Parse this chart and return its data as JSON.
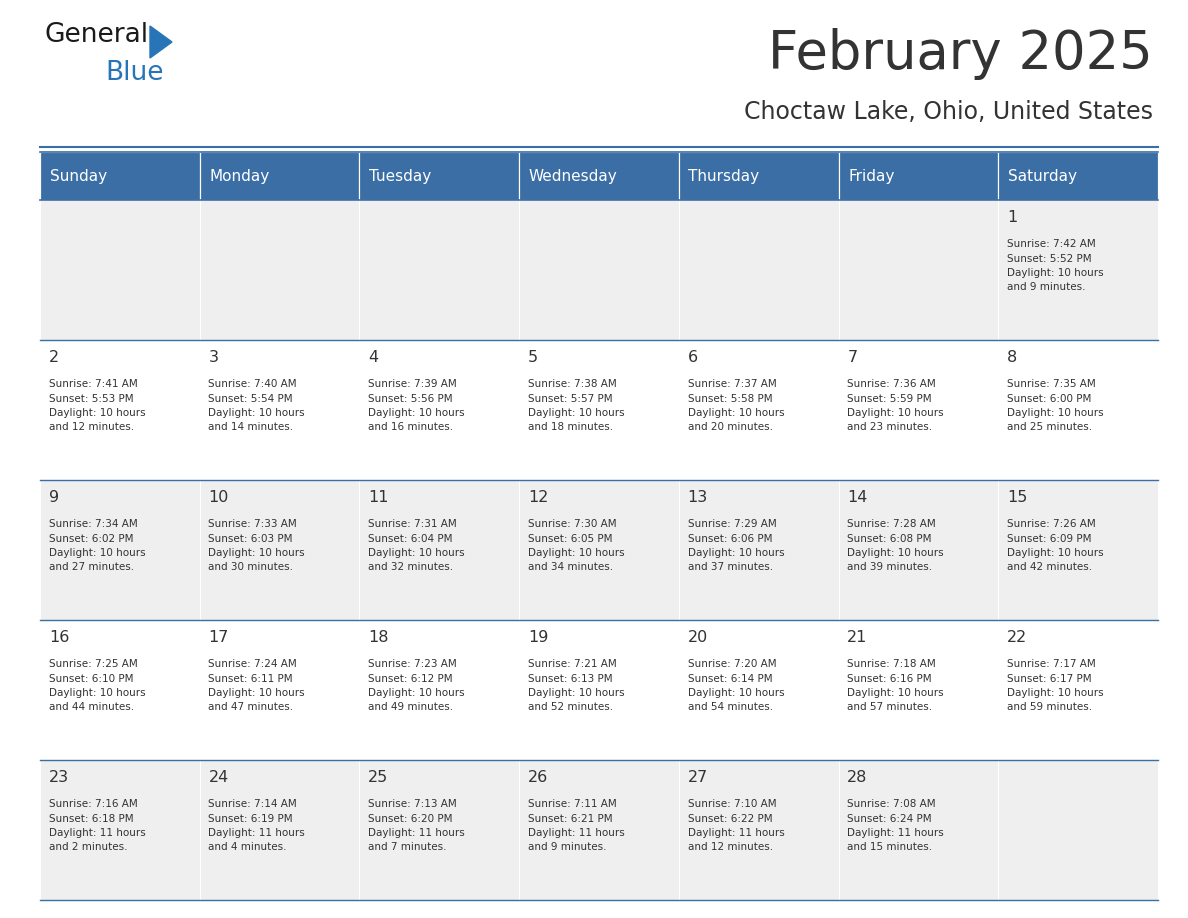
{
  "title": "February 2025",
  "subtitle": "Choctaw Lake, Ohio, United States",
  "header_color": "#3A6EA5",
  "header_text_color": "#FFFFFF",
  "cell_bg_light": "#EFEFEF",
  "cell_bg_white": "#FFFFFF",
  "day_number_color": "#333333",
  "text_color": "#333333",
  "line_color": "#3A6EA5",
  "weekdays": [
    "Sunday",
    "Monday",
    "Tuesday",
    "Wednesday",
    "Thursday",
    "Friday",
    "Saturday"
  ],
  "calendar": [
    [
      {
        "day": null,
        "info": null
      },
      {
        "day": null,
        "info": null
      },
      {
        "day": null,
        "info": null
      },
      {
        "day": null,
        "info": null
      },
      {
        "day": null,
        "info": null
      },
      {
        "day": null,
        "info": null
      },
      {
        "day": 1,
        "info": "Sunrise: 7:42 AM\nSunset: 5:52 PM\nDaylight: 10 hours\nand 9 minutes."
      }
    ],
    [
      {
        "day": 2,
        "info": "Sunrise: 7:41 AM\nSunset: 5:53 PM\nDaylight: 10 hours\nand 12 minutes."
      },
      {
        "day": 3,
        "info": "Sunrise: 7:40 AM\nSunset: 5:54 PM\nDaylight: 10 hours\nand 14 minutes."
      },
      {
        "day": 4,
        "info": "Sunrise: 7:39 AM\nSunset: 5:56 PM\nDaylight: 10 hours\nand 16 minutes."
      },
      {
        "day": 5,
        "info": "Sunrise: 7:38 AM\nSunset: 5:57 PM\nDaylight: 10 hours\nand 18 minutes."
      },
      {
        "day": 6,
        "info": "Sunrise: 7:37 AM\nSunset: 5:58 PM\nDaylight: 10 hours\nand 20 minutes."
      },
      {
        "day": 7,
        "info": "Sunrise: 7:36 AM\nSunset: 5:59 PM\nDaylight: 10 hours\nand 23 minutes."
      },
      {
        "day": 8,
        "info": "Sunrise: 7:35 AM\nSunset: 6:00 PM\nDaylight: 10 hours\nand 25 minutes."
      }
    ],
    [
      {
        "day": 9,
        "info": "Sunrise: 7:34 AM\nSunset: 6:02 PM\nDaylight: 10 hours\nand 27 minutes."
      },
      {
        "day": 10,
        "info": "Sunrise: 7:33 AM\nSunset: 6:03 PM\nDaylight: 10 hours\nand 30 minutes."
      },
      {
        "day": 11,
        "info": "Sunrise: 7:31 AM\nSunset: 6:04 PM\nDaylight: 10 hours\nand 32 minutes."
      },
      {
        "day": 12,
        "info": "Sunrise: 7:30 AM\nSunset: 6:05 PM\nDaylight: 10 hours\nand 34 minutes."
      },
      {
        "day": 13,
        "info": "Sunrise: 7:29 AM\nSunset: 6:06 PM\nDaylight: 10 hours\nand 37 minutes."
      },
      {
        "day": 14,
        "info": "Sunrise: 7:28 AM\nSunset: 6:08 PM\nDaylight: 10 hours\nand 39 minutes."
      },
      {
        "day": 15,
        "info": "Sunrise: 7:26 AM\nSunset: 6:09 PM\nDaylight: 10 hours\nand 42 minutes."
      }
    ],
    [
      {
        "day": 16,
        "info": "Sunrise: 7:25 AM\nSunset: 6:10 PM\nDaylight: 10 hours\nand 44 minutes."
      },
      {
        "day": 17,
        "info": "Sunrise: 7:24 AM\nSunset: 6:11 PM\nDaylight: 10 hours\nand 47 minutes."
      },
      {
        "day": 18,
        "info": "Sunrise: 7:23 AM\nSunset: 6:12 PM\nDaylight: 10 hours\nand 49 minutes."
      },
      {
        "day": 19,
        "info": "Sunrise: 7:21 AM\nSunset: 6:13 PM\nDaylight: 10 hours\nand 52 minutes."
      },
      {
        "day": 20,
        "info": "Sunrise: 7:20 AM\nSunset: 6:14 PM\nDaylight: 10 hours\nand 54 minutes."
      },
      {
        "day": 21,
        "info": "Sunrise: 7:18 AM\nSunset: 6:16 PM\nDaylight: 10 hours\nand 57 minutes."
      },
      {
        "day": 22,
        "info": "Sunrise: 7:17 AM\nSunset: 6:17 PM\nDaylight: 10 hours\nand 59 minutes."
      }
    ],
    [
      {
        "day": 23,
        "info": "Sunrise: 7:16 AM\nSunset: 6:18 PM\nDaylight: 11 hours\nand 2 minutes."
      },
      {
        "day": 24,
        "info": "Sunrise: 7:14 AM\nSunset: 6:19 PM\nDaylight: 11 hours\nand 4 minutes."
      },
      {
        "day": 25,
        "info": "Sunrise: 7:13 AM\nSunset: 6:20 PM\nDaylight: 11 hours\nand 7 minutes."
      },
      {
        "day": 26,
        "info": "Sunrise: 7:11 AM\nSunset: 6:21 PM\nDaylight: 11 hours\nand 9 minutes."
      },
      {
        "day": 27,
        "info": "Sunrise: 7:10 AM\nSunset: 6:22 PM\nDaylight: 11 hours\nand 12 minutes."
      },
      {
        "day": 28,
        "info": "Sunrise: 7:08 AM\nSunset: 6:24 PM\nDaylight: 11 hours\nand 15 minutes."
      },
      {
        "day": null,
        "info": null
      }
    ]
  ],
  "logo_text_general": "General",
  "logo_text_blue": "Blue",
  "logo_color_general": "#1a1a1a",
  "logo_color_blue": "#2775b6",
  "logo_triangle_color": "#2775b6",
  "fig_width": 11.88,
  "fig_height": 9.18,
  "dpi": 100
}
